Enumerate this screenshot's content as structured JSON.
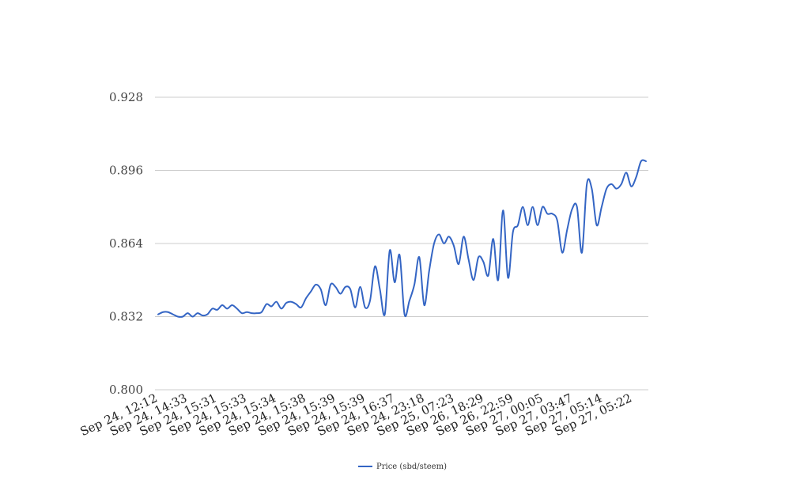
{
  "chart_data": {
    "type": "line",
    "title": "",
    "xlabel": "",
    "ylabel": "",
    "ylim": [
      0.8,
      0.928
    ],
    "yticks": [
      "0.800",
      "0.832",
      "0.864",
      "0.896",
      "0.928"
    ],
    "grid": true,
    "legend_position": "bottom",
    "x_tick_labels": [
      "Sep 24, 12:12",
      "Sep 24, 14:33",
      "Sep 24, 15:31",
      "Sep 24, 15:33",
      "Sep 24, 15:34",
      "Sep 24, 15:38",
      "Sep 24, 15:39",
      "Sep 24, 15:39",
      "Sep 24, 16:37",
      "Sep 24, 23:18",
      "Sep 25, 07:23",
      "Sep 26, 18:29",
      "Sep 26, 22:59",
      "Sep 27, 00:05",
      "Sep 27, 03:47",
      "Sep 27, 05:14",
      "Sep 27, 05:22"
    ],
    "series": [
      {
        "name": "Price (sbd/steem)",
        "color": "#3465c4",
        "values": [
          0.833,
          0.834,
          0.834,
          0.833,
          0.832,
          0.832,
          0.8335,
          0.832,
          0.8335,
          0.8325,
          0.833,
          0.8355,
          0.835,
          0.837,
          0.8355,
          0.837,
          0.8355,
          0.8335,
          0.834,
          0.8335,
          0.8335,
          0.834,
          0.8375,
          0.8365,
          0.8385,
          0.8355,
          0.838,
          0.8385,
          0.8375,
          0.836,
          0.84,
          0.843,
          0.846,
          0.844,
          0.837,
          0.846,
          0.845,
          0.842,
          0.845,
          0.844,
          0.836,
          0.845,
          0.836,
          0.839,
          0.854,
          0.844,
          0.833,
          0.861,
          0.847,
          0.859,
          0.833,
          0.839,
          0.846,
          0.858,
          0.837,
          0.852,
          0.864,
          0.868,
          0.864,
          0.867,
          0.863,
          0.855,
          0.867,
          0.857,
          0.848,
          0.858,
          0.856,
          0.85,
          0.866,
          0.848,
          0.8785,
          0.849,
          0.869,
          0.872,
          0.88,
          0.872,
          0.88,
          0.872,
          0.88,
          0.877,
          0.877,
          0.874,
          0.86,
          0.87,
          0.879,
          0.88,
          0.86,
          0.89,
          0.888,
          0.872,
          0.88,
          0.888,
          0.89,
          0.888,
          0.89,
          0.895,
          0.889,
          0.893,
          0.9,
          0.9
        ]
      }
    ]
  }
}
